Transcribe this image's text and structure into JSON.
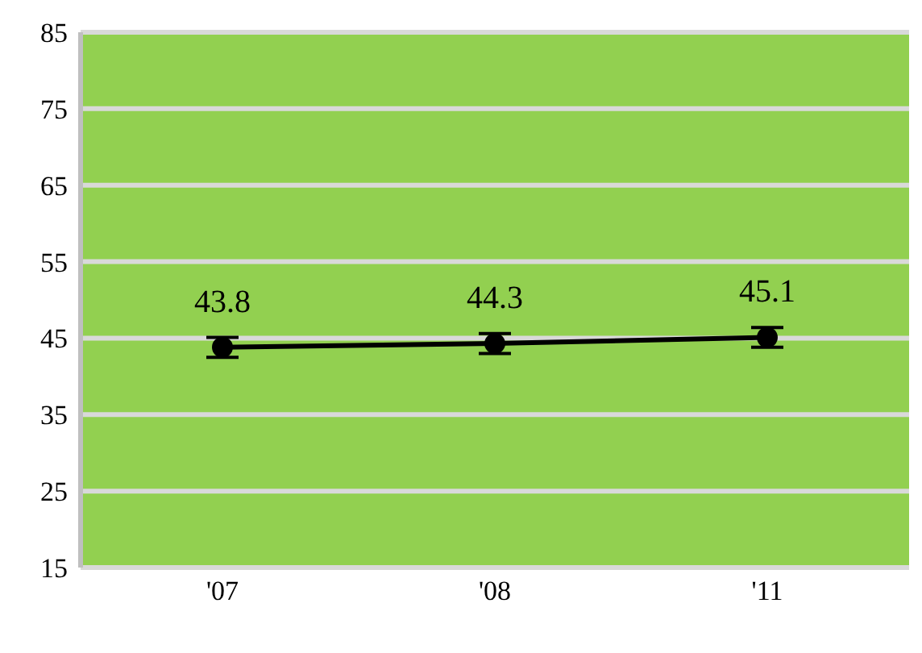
{
  "chart_data": {
    "type": "line",
    "categories": [
      "'07",
      "'08",
      "'11"
    ],
    "series": [
      {
        "color": "#000000",
        "values": [
          43.8,
          44.3,
          45.1
        ],
        "errors": [
          1.3,
          1.3,
          1.3
        ]
      }
    ],
    "ylim": [
      15,
      85
    ],
    "yticks": [
      15,
      25,
      35,
      45,
      55,
      65,
      75,
      85
    ],
    "grid": "y",
    "marker": "circle",
    "line_style": "solid",
    "data_labels": true
  }
}
